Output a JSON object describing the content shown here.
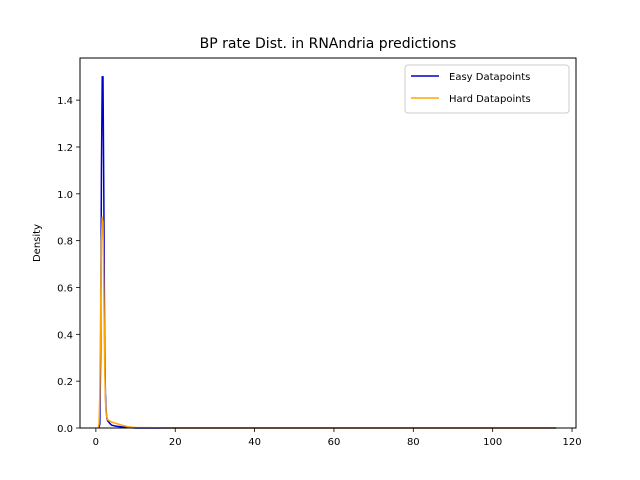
{
  "chart_data": {
    "type": "line",
    "title": "BP rate Dist. in RNAndria predictions",
    "xlabel": "",
    "ylabel": "Density",
    "xlim": [
      -4,
      121
    ],
    "ylim": [
      0,
      1.58
    ],
    "xticks": [
      0,
      20,
      40,
      60,
      80,
      100,
      120
    ],
    "yticks": [
      0.0,
      0.2,
      0.4,
      0.6,
      0.8,
      1.0,
      1.2,
      1.4
    ],
    "grid": false,
    "legend_position": "top-right",
    "series": [
      {
        "name": "Easy Datapoints",
        "color": "#0000cc",
        "x": [
          0.8,
          1.0,
          1.2,
          1.4,
          1.6,
          1.8,
          2.0,
          2.2,
          2.4,
          2.6,
          2.8,
          3.0,
          3.5,
          4.0,
          5.0,
          6.0,
          7.0,
          8.0,
          9.0,
          10.0,
          20.0,
          40.0,
          60.0,
          80.0,
          100.0,
          116.0
        ],
        "y": [
          0.0,
          0.02,
          0.3,
          1.1,
          1.5,
          1.5,
          1.0,
          0.4,
          0.15,
          0.07,
          0.04,
          0.03,
          0.02,
          0.012,
          0.008,
          0.006,
          0.004,
          0.002,
          0.001,
          0.0,
          0.0,
          0.0,
          0.0,
          0.0,
          0.0,
          0.0
        ]
      },
      {
        "name": "Hard Datapoints",
        "color": "#ffa500",
        "x": [
          0.6,
          0.8,
          1.0,
          1.2,
          1.4,
          1.6,
          1.8,
          2.0,
          2.2,
          2.4,
          2.6,
          2.8,
          3.0,
          3.5,
          4.0,
          5.0,
          6.0,
          7.0,
          8.0,
          9.0,
          10.0,
          20.0,
          40.0,
          60.0,
          80.0,
          100.0,
          116.0
        ],
        "y": [
          0.0,
          0.02,
          0.15,
          0.5,
          0.8,
          0.9,
          0.88,
          0.6,
          0.3,
          0.12,
          0.06,
          0.045,
          0.035,
          0.03,
          0.025,
          0.02,
          0.015,
          0.01,
          0.006,
          0.003,
          0.002,
          0.0,
          0.0,
          0.0,
          0.0,
          0.0,
          0.0
        ]
      }
    ]
  }
}
